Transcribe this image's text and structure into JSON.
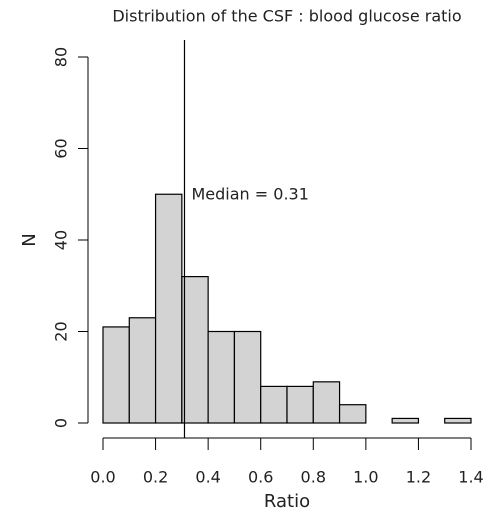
{
  "chart_data": {
    "type": "histogram",
    "title": "Distribution of the CSF : blood glucose ratio",
    "x_label": "Ratio",
    "y_label": "N",
    "bins": [
      0,
      0.1,
      0.2,
      0.3,
      0.4,
      0.5,
      0.6,
      0.7,
      0.8,
      0.9,
      1.0,
      1.1,
      1.2,
      1.3,
      1.4
    ],
    "values": [
      21,
      23,
      50,
      32,
      20,
      20,
      8,
      8,
      9,
      4,
      0,
      1,
      0,
      1
    ],
    "color": "#d3d3d3",
    "xlim": [
      0,
      1.4
    ],
    "xticks": [
      {
        "value": 0,
        "label": "0.0"
      },
      0.2,
      0.4,
      0.6,
      0.8,
      {
        "value": 1,
        "label": "1.0"
      },
      1.2,
      1.4
    ],
    "ylim": [
      0,
      80
    ],
    "yticks": [
      0,
      20,
      40,
      60,
      80
    ],
    "median": 0.31,
    "annotation": "Median = 0.31"
  }
}
